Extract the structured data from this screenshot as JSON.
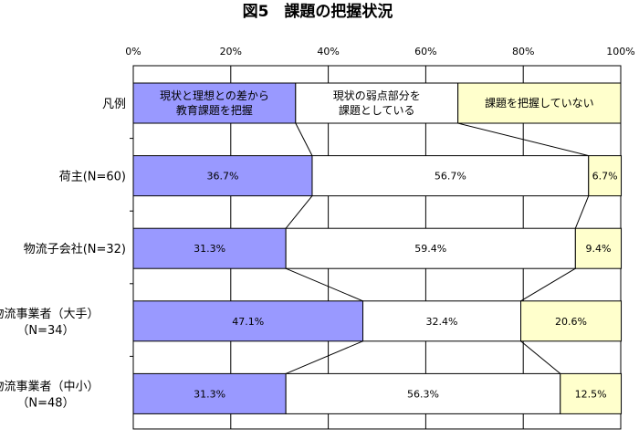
{
  "chart_data": {
    "type": "bar",
    "orientation": "horizontal",
    "stacked": "percent",
    "title": "図5　課題の把握状況",
    "xlim": [
      0,
      100
    ],
    "x_ticks": [
      "0%",
      "20%",
      "40%",
      "60%",
      "80%",
      "100%"
    ],
    "grid": true,
    "legend_row": {
      "label": "凡例",
      "entries": [
        {
          "lines": [
            "現状と理想との差から",
            "教育課題を把握"
          ],
          "value": 33.3
        },
        {
          "lines": [
            "現状の弱点部分を",
            "課題としている"
          ],
          "value": 33.3
        },
        {
          "lines": [
            "課題を把握していない"
          ],
          "value": 33.4
        }
      ]
    },
    "categories": [
      {
        "lines": [
          "荷主(N=60)"
        ]
      },
      {
        "lines": [
          "物流子会社(N=32)"
        ]
      },
      {
        "lines": [
          "物流事業者（大手）",
          "（N=34）"
        ]
      },
      {
        "lines": [
          "物流事業者（中小）",
          "（N=48）"
        ]
      }
    ],
    "series": [
      {
        "values": [
          36.7,
          31.3,
          47.1,
          31.3
        ],
        "labels": [
          "36.7%",
          "31.3%",
          "47.1%",
          "31.3%"
        ],
        "color": "#9999ff"
      },
      {
        "values": [
          56.7,
          59.4,
          32.4,
          56.3
        ],
        "labels": [
          "56.7%",
          "59.4%",
          "32.4%",
          "56.3%"
        ],
        "color": "#ffffff"
      },
      {
        "values": [
          6.7,
          9.4,
          20.6,
          12.5
        ],
        "labels": [
          "6.7%",
          "9.4%",
          "20.6%",
          "12.5%"
        ],
        "color": "#ffffcc"
      }
    ],
    "series_lines": true
  }
}
